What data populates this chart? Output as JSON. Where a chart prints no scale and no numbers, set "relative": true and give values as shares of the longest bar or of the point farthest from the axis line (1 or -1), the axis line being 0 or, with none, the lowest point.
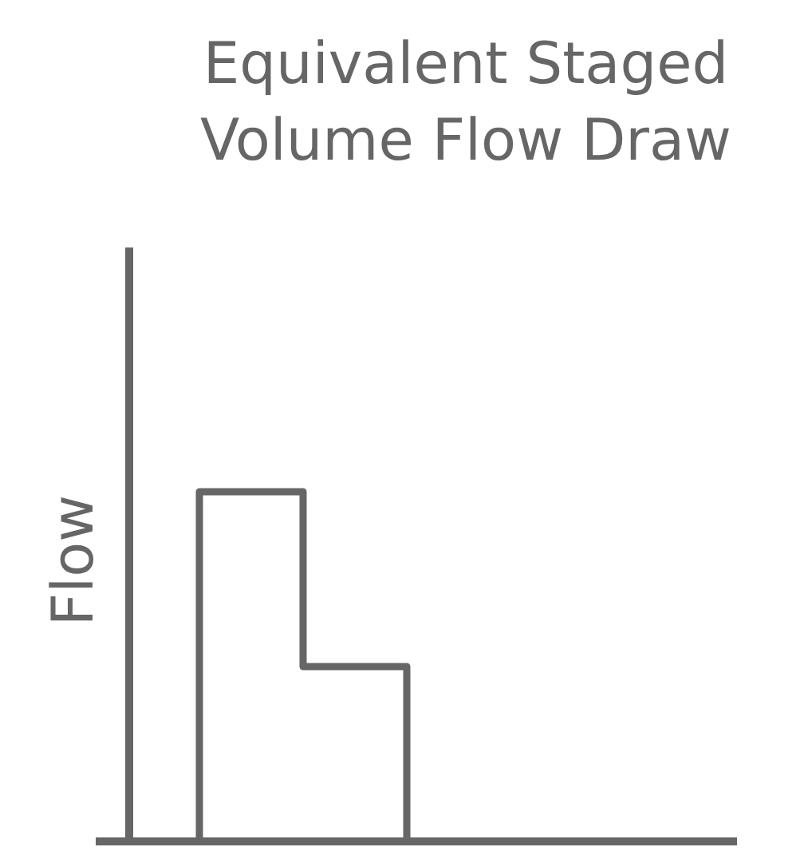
{
  "chart_data": {
    "type": "step",
    "title": "Equivalent Staged Volume Flow Draw",
    "ylabel": "Flow",
    "relative": true,
    "categories": [
      null,
      null,
      null,
      null
    ],
    "series": [
      {
        "color": "#666666",
        "values": [
          0,
          1,
          0.5,
          0
        ]
      }
    ],
    "marker": "none",
    "line_style": "solid"
  }
}
